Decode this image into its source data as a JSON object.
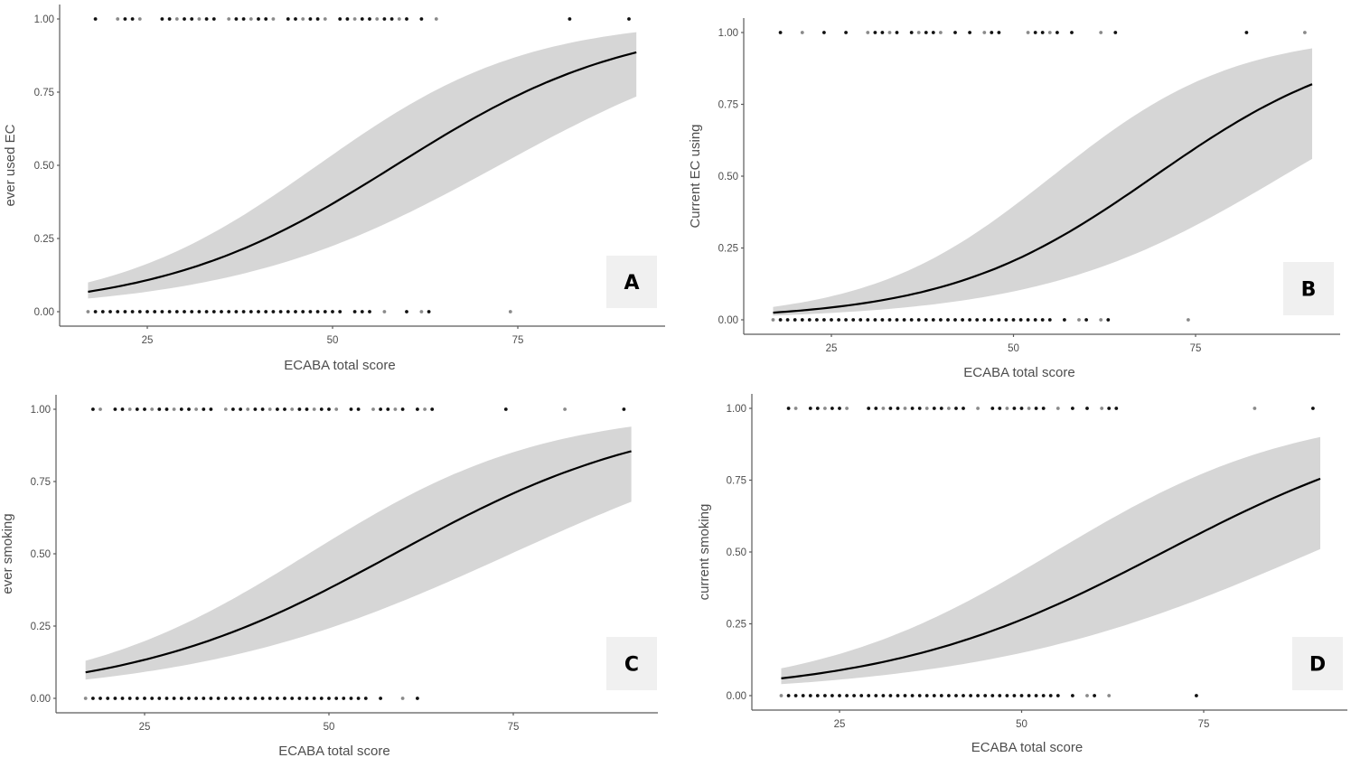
{
  "chart_data": [
    {
      "type": "scatter",
      "panel": "A",
      "title": "",
      "xlabel": "ECABA total score",
      "ylabel": "ever used EC",
      "xlim": [
        14,
        94
      ],
      "ylim": [
        -0.05,
        1.05
      ],
      "xticks": [
        25,
        50,
        75
      ],
      "xtick_labels": [
        "25",
        "50",
        "75"
      ],
      "yticks": [
        0,
        0.25,
        0.5,
        0.75,
        1
      ],
      "ytick_labels": [
        "0.00",
        "0.25",
        "0.50",
        "0.75",
        "1.00"
      ],
      "grid": false,
      "fit": {
        "type": "logistic",
        "x_range": [
          17,
          91
        ],
        "p_start": 0.068,
        "p_end": 0.886,
        "ci_start": [
          0.045,
          0.1
        ],
        "ci_end": [
          0.735,
          0.955
        ]
      },
      "points_y1": [
        18,
        21,
        22,
        23,
        24,
        27,
        28,
        29,
        30,
        31,
        32,
        33,
        34,
        36,
        37,
        38,
        39,
        40,
        41,
        42,
        44,
        45,
        46,
        47,
        48,
        49,
        51,
        52,
        53,
        54,
        55,
        56,
        57,
        58,
        59,
        60,
        62,
        64,
        82,
        90
      ],
      "points_y0": [
        17,
        18,
        19,
        20,
        21,
        22,
        23,
        24,
        25,
        26,
        27,
        28,
        29,
        30,
        31,
        32,
        33,
        34,
        35,
        36,
        37,
        38,
        39,
        40,
        41,
        42,
        43,
        44,
        45,
        46,
        47,
        48,
        49,
        50,
        51,
        53,
        54,
        55,
        57,
        60,
        62,
        63,
        74
      ],
      "panel_label": "A"
    },
    {
      "type": "scatter",
      "panel": "B",
      "title": "",
      "xlabel": "ECABA total score",
      "ylabel": "Current EC using",
      "xlim": [
        14,
        94
      ],
      "ylim": [
        -0.05,
        1.05
      ],
      "xticks": [
        25,
        50,
        75
      ],
      "xtick_labels": [
        "25",
        "50",
        "75"
      ],
      "yticks": [
        0,
        0.25,
        0.5,
        0.75,
        1
      ],
      "ytick_labels": [
        "0.00",
        "0.25",
        "0.50",
        "0.75",
        "1.00"
      ],
      "grid": false,
      "fit": {
        "type": "logistic",
        "x_range": [
          17,
          91
        ],
        "p_start": 0.025,
        "p_end": 0.82,
        "ci_start": [
          0.015,
          0.045
        ],
        "ci_end": [
          0.56,
          0.945
        ]
      },
      "points_y1": [
        18,
        21,
        24,
        27,
        30,
        31,
        32,
        33,
        34,
        36,
        37,
        38,
        39,
        40,
        42,
        44,
        46,
        47,
        48,
        52,
        53,
        54,
        55,
        56,
        58,
        62,
        64,
        82,
        90
      ],
      "points_y0": [
        17,
        18,
        19,
        20,
        21,
        22,
        23,
        24,
        25,
        26,
        27,
        28,
        29,
        30,
        31,
        32,
        33,
        34,
        35,
        36,
        37,
        38,
        39,
        40,
        41,
        42,
        43,
        44,
        45,
        46,
        47,
        48,
        49,
        50,
        51,
        52,
        53,
        54,
        55,
        57,
        59,
        60,
        62,
        63,
        74
      ],
      "panel_label": "B"
    },
    {
      "type": "scatter",
      "panel": "C",
      "title": "",
      "xlabel": "ECABA total score",
      "ylabel": "ever smoking",
      "xlim": [
        14,
        94
      ],
      "ylim": [
        -0.05,
        1.05
      ],
      "xticks": [
        25,
        50,
        75
      ],
      "xtick_labels": [
        "25",
        "50",
        "75"
      ],
      "yticks": [
        0,
        0.25,
        0.5,
        0.75,
        1
      ],
      "ytick_labels": [
        "0.00",
        "0.25",
        "0.50",
        "0.75",
        "1.00"
      ],
      "grid": false,
      "fit": {
        "type": "logistic",
        "x_range": [
          17,
          91
        ],
        "p_start": 0.09,
        "p_end": 0.855,
        "ci_start": [
          0.065,
          0.13
        ],
        "ci_end": [
          0.68,
          0.94
        ]
      },
      "points_y1": [
        18,
        19,
        21,
        22,
        23,
        24,
        25,
        26,
        27,
        28,
        29,
        30,
        31,
        32,
        33,
        34,
        36,
        37,
        38,
        39,
        40,
        41,
        42,
        43,
        44,
        45,
        46,
        47,
        48,
        49,
        50,
        51,
        53,
        54,
        56,
        57,
        58,
        59,
        60,
        62,
        63,
        64,
        74,
        82,
        90
      ],
      "points_y0": [
        17,
        18,
        19,
        20,
        21,
        22,
        23,
        24,
        25,
        26,
        27,
        28,
        29,
        30,
        31,
        32,
        33,
        34,
        35,
        36,
        37,
        38,
        39,
        40,
        41,
        42,
        43,
        44,
        45,
        46,
        47,
        48,
        49,
        50,
        51,
        52,
        53,
        54,
        55,
        57,
        60,
        62
      ],
      "panel_label": "C"
    },
    {
      "type": "scatter",
      "panel": "D",
      "title": "",
      "xlabel": "ECABA total score",
      "ylabel": "current smoking",
      "xlim": [
        14,
        94
      ],
      "ylim": [
        -0.05,
        1.05
      ],
      "xticks": [
        25,
        50,
        75
      ],
      "xtick_labels": [
        "25",
        "50",
        "75"
      ],
      "yticks": [
        0,
        0.25,
        0.5,
        0.75,
        1
      ],
      "ytick_labels": [
        "0.00",
        "0.25",
        "0.50",
        "0.75",
        "1.00"
      ],
      "grid": false,
      "fit": {
        "type": "logistic",
        "x_range": [
          17,
          91
        ],
        "p_start": 0.06,
        "p_end": 0.755,
        "ci_start": [
          0.04,
          0.095
        ],
        "ci_end": [
          0.51,
          0.9
        ]
      },
      "points_y1": [
        18,
        19,
        21,
        22,
        23,
        24,
        25,
        26,
        29,
        30,
        31,
        32,
        33,
        34,
        35,
        36,
        37,
        38,
        39,
        40,
        41,
        42,
        44,
        46,
        47,
        48,
        49,
        50,
        51,
        52,
        53,
        55,
        57,
        59,
        61,
        62,
        63,
        82,
        90
      ],
      "points_y0": [
        17,
        18,
        19,
        20,
        21,
        22,
        23,
        24,
        25,
        26,
        27,
        28,
        29,
        30,
        31,
        32,
        33,
        34,
        35,
        36,
        37,
        38,
        39,
        40,
        41,
        42,
        43,
        44,
        45,
        46,
        47,
        48,
        49,
        50,
        51,
        52,
        53,
        54,
        55,
        57,
        59,
        60,
        62,
        74
      ],
      "panel_label": "D"
    }
  ]
}
